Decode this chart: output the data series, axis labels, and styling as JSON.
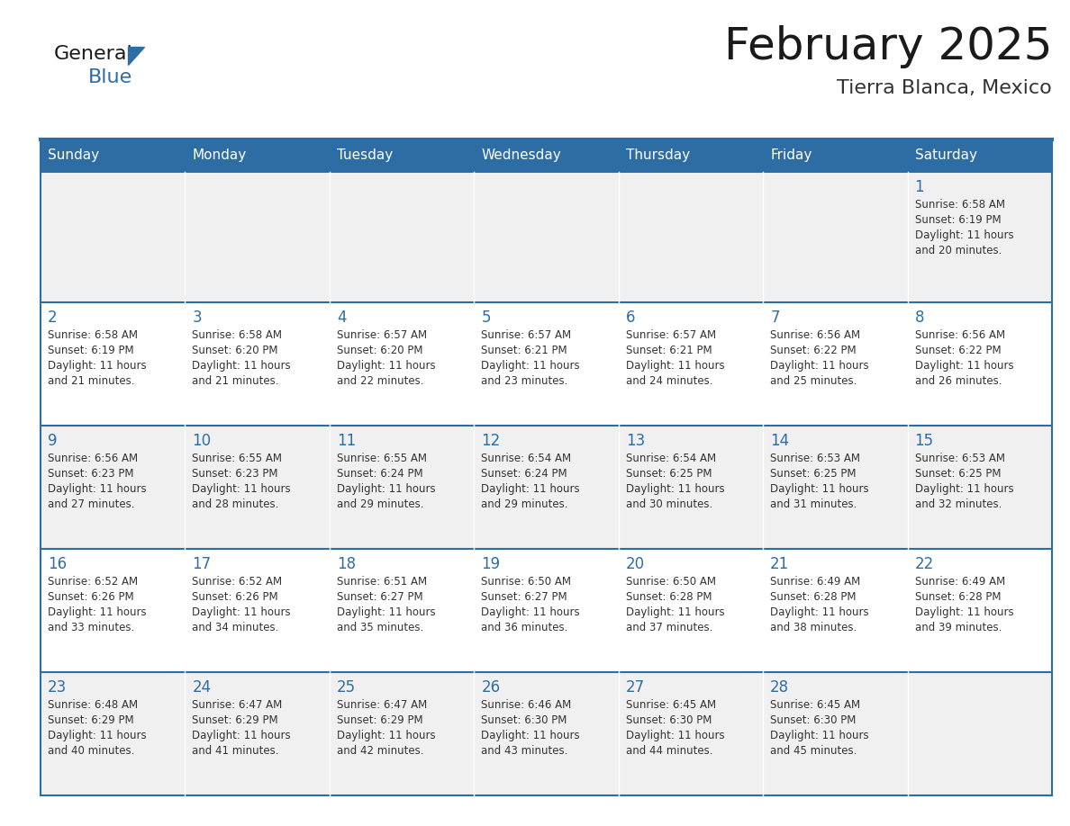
{
  "title": "February 2025",
  "subtitle": "Tierra Blanca, Mexico",
  "header_bg": "#2e6da4",
  "header_text_color": "#ffffff",
  "row_bg_odd": "#f0f0f0",
  "row_bg_even": "#ffffff",
  "day_headers": [
    "Sunday",
    "Monday",
    "Tuesday",
    "Wednesday",
    "Thursday",
    "Friday",
    "Saturday"
  ],
  "title_color": "#1a1a1a",
  "subtitle_color": "#333333",
  "day_num_color": "#2e6da4",
  "cell_text_color": "#333333",
  "border_color": "#2e6da4",
  "calendar_data": [
    [
      null,
      null,
      null,
      null,
      null,
      null,
      {
        "day": 1,
        "sunrise": "6:58 AM",
        "sunset": "6:19 PM",
        "daylight": "11 hours and 20 minutes."
      }
    ],
    [
      {
        "day": 2,
        "sunrise": "6:58 AM",
        "sunset": "6:19 PM",
        "daylight": "11 hours and 21 minutes."
      },
      {
        "day": 3,
        "sunrise": "6:58 AM",
        "sunset": "6:20 PM",
        "daylight": "11 hours and 21 minutes."
      },
      {
        "day": 4,
        "sunrise": "6:57 AM",
        "sunset": "6:20 PM",
        "daylight": "11 hours and 22 minutes."
      },
      {
        "day": 5,
        "sunrise": "6:57 AM",
        "sunset": "6:21 PM",
        "daylight": "11 hours and 23 minutes."
      },
      {
        "day": 6,
        "sunrise": "6:57 AM",
        "sunset": "6:21 PM",
        "daylight": "11 hours and 24 minutes."
      },
      {
        "day": 7,
        "sunrise": "6:56 AM",
        "sunset": "6:22 PM",
        "daylight": "11 hours and 25 minutes."
      },
      {
        "day": 8,
        "sunrise": "6:56 AM",
        "sunset": "6:22 PM",
        "daylight": "11 hours and 26 minutes."
      }
    ],
    [
      {
        "day": 9,
        "sunrise": "6:56 AM",
        "sunset": "6:23 PM",
        "daylight": "11 hours and 27 minutes."
      },
      {
        "day": 10,
        "sunrise": "6:55 AM",
        "sunset": "6:23 PM",
        "daylight": "11 hours and 28 minutes."
      },
      {
        "day": 11,
        "sunrise": "6:55 AM",
        "sunset": "6:24 PM",
        "daylight": "11 hours and 29 minutes."
      },
      {
        "day": 12,
        "sunrise": "6:54 AM",
        "sunset": "6:24 PM",
        "daylight": "11 hours and 29 minutes."
      },
      {
        "day": 13,
        "sunrise": "6:54 AM",
        "sunset": "6:25 PM",
        "daylight": "11 hours and 30 minutes."
      },
      {
        "day": 14,
        "sunrise": "6:53 AM",
        "sunset": "6:25 PM",
        "daylight": "11 hours and 31 minutes."
      },
      {
        "day": 15,
        "sunrise": "6:53 AM",
        "sunset": "6:25 PM",
        "daylight": "11 hours and 32 minutes."
      }
    ],
    [
      {
        "day": 16,
        "sunrise": "6:52 AM",
        "sunset": "6:26 PM",
        "daylight": "11 hours and 33 minutes."
      },
      {
        "day": 17,
        "sunrise": "6:52 AM",
        "sunset": "6:26 PM",
        "daylight": "11 hours and 34 minutes."
      },
      {
        "day": 18,
        "sunrise": "6:51 AM",
        "sunset": "6:27 PM",
        "daylight": "11 hours and 35 minutes."
      },
      {
        "day": 19,
        "sunrise": "6:50 AM",
        "sunset": "6:27 PM",
        "daylight": "11 hours and 36 minutes."
      },
      {
        "day": 20,
        "sunrise": "6:50 AM",
        "sunset": "6:28 PM",
        "daylight": "11 hours and 37 minutes."
      },
      {
        "day": 21,
        "sunrise": "6:49 AM",
        "sunset": "6:28 PM",
        "daylight": "11 hours and 38 minutes."
      },
      {
        "day": 22,
        "sunrise": "6:49 AM",
        "sunset": "6:28 PM",
        "daylight": "11 hours and 39 minutes."
      }
    ],
    [
      {
        "day": 23,
        "sunrise": "6:48 AM",
        "sunset": "6:29 PM",
        "daylight": "11 hours and 40 minutes."
      },
      {
        "day": 24,
        "sunrise": "6:47 AM",
        "sunset": "6:29 PM",
        "daylight": "11 hours and 41 minutes."
      },
      {
        "day": 25,
        "sunrise": "6:47 AM",
        "sunset": "6:29 PM",
        "daylight": "11 hours and 42 minutes."
      },
      {
        "day": 26,
        "sunrise": "6:46 AM",
        "sunset": "6:30 PM",
        "daylight": "11 hours and 43 minutes."
      },
      {
        "day": 27,
        "sunrise": "6:45 AM",
        "sunset": "6:30 PM",
        "daylight": "11 hours and 44 minutes."
      },
      {
        "day": 28,
        "sunrise": "6:45 AM",
        "sunset": "6:30 PM",
        "daylight": "11 hours and 45 minutes."
      },
      null
    ]
  ],
  "logo_text1": "General",
  "logo_text2": "Blue",
  "logo_color1": "#1a1a1a",
  "logo_color2": "#2e6da4",
  "logo_triangle_color": "#2e6da4",
  "fig_width": 11.88,
  "fig_height": 9.18,
  "dpi": 100
}
